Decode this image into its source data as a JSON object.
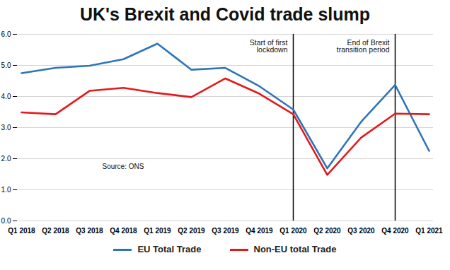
{
  "chart_data": {
    "type": "line",
    "title": "UK's Brexit and Covid trade slump",
    "categories": [
      "Q1 2018",
      "Q2 2018",
      "Q3 2018",
      "Q4 2018",
      "Q1 2019",
      "Q2 2019",
      "Q3 2019",
      "Q4 2019",
      "Q1 2020",
      "Q2 2020",
      "Q3 2020",
      "Q4 2020",
      "Q1 2021"
    ],
    "series": [
      {
        "name": "EU Total Trade",
        "color": "#2e75b6",
        "values": [
          4.75,
          4.92,
          4.99,
          5.2,
          5.7,
          4.86,
          4.92,
          4.33,
          3.58,
          1.69,
          3.19,
          4.37,
          2.25
        ]
      },
      {
        "name": "Non-EU total Trade",
        "color": "#e31a1c",
        "values": [
          3.49,
          3.43,
          4.18,
          4.28,
          4.11,
          3.98,
          4.58,
          4.09,
          3.43,
          1.48,
          2.68,
          3.45,
          3.43
        ]
      }
    ],
    "ylim": [
      0,
      6
    ],
    "yticks": [
      0,
      1,
      2,
      3,
      4,
      5,
      6
    ],
    "grid": true,
    "tick_labels": "x",
    "legend": "bottom",
    "annotations": [
      {
        "text": "Start of first lockdown",
        "x": "Q1 2020"
      },
      {
        "text": "End of Brexit transition period",
        "x": "Q4 2020"
      }
    ],
    "source": "Source: ONS"
  }
}
